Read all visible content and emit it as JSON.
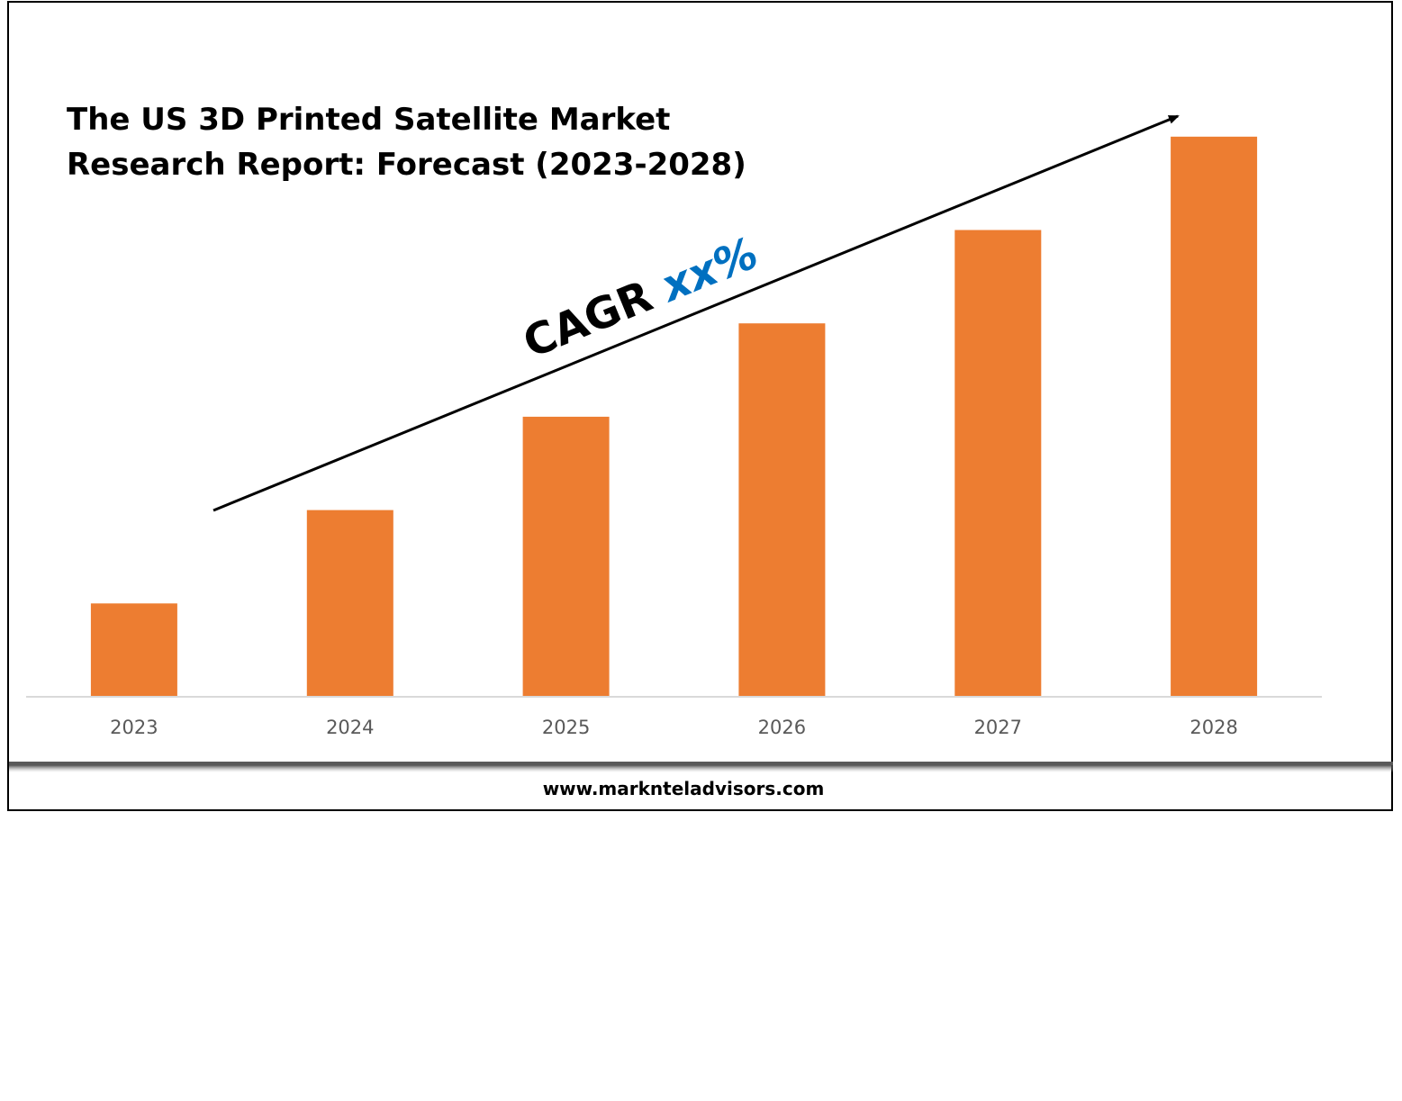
{
  "chart_data": {
    "type": "bar",
    "title_lines": [
      "The US 3D Printed Satellite Market",
      "Research Report: Forecast (2023-2028)"
    ],
    "categories": [
      "2023",
      "2024",
      "2025",
      "2026",
      "2027",
      "2028"
    ],
    "values": [
      1,
      2,
      3,
      4,
      5,
      6
    ],
    "ylim": [
      0,
      6.5
    ],
    "grid": false,
    "legend": "none",
    "bar_color": "#ed7d31",
    "annotation": {
      "prefix": "CAGR ",
      "value": "xx%",
      "value_color": "#0070c0"
    }
  },
  "footer": {
    "url": "www.marknteladvisors.com"
  }
}
